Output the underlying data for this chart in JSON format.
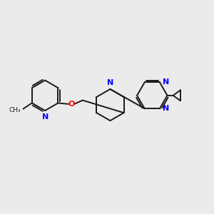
{
  "background_color": "#ebebeb",
  "bond_color": "#1a1a1a",
  "N_color": "#0000ff",
  "O_color": "#ff0000",
  "font_size": 8.0,
  "line_width": 1.4,
  "fig_size": [
    3.0,
    3.0
  ],
  "dpi": 100,
  "xlim": [
    0,
    10
  ],
  "ylim": [
    0,
    10
  ]
}
